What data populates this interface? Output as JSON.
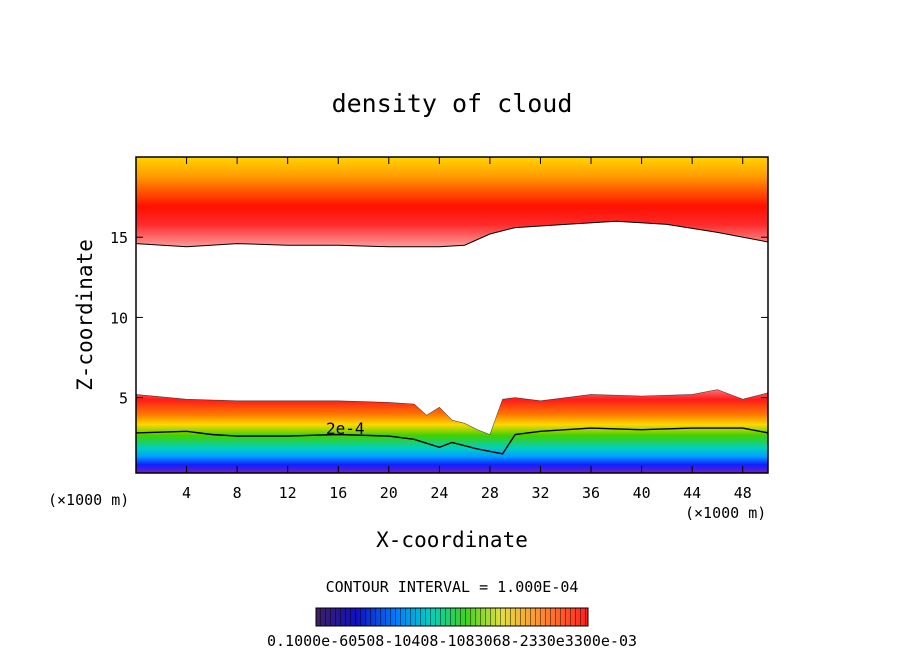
{
  "chart_data": {
    "type": "heatmap",
    "title": "density of cloud",
    "xlabel": "X-coordinate",
    "ylabel": "Z-coordinate",
    "x_unit_left": "(×1000 m)",
    "x_unit_right": "(×1000 m)",
    "xlim": [
      0,
      50
    ],
    "ylim": [
      0.3,
      20
    ],
    "x_ticks": [
      4,
      8,
      12,
      16,
      20,
      24,
      28,
      32,
      36,
      40,
      44,
      48
    ],
    "y_ticks": [
      5,
      10,
      15
    ],
    "contour_interval_text": "CONTOUR INTERVAL = 1.000E-04",
    "contour_label": "2e-4",
    "colorbar_labels_text": "0.1000e-60508-10408-1083068-2330e3300e-03",
    "colorbar_range": [
      0.0001,
      0.0003
    ],
    "upper_layer_bottom": [
      [
        0,
        14.6
      ],
      [
        4,
        14.4
      ],
      [
        8,
        14.6
      ],
      [
        12,
        14.5
      ],
      [
        16,
        14.5
      ],
      [
        20,
        14.4
      ],
      [
        24,
        14.4
      ],
      [
        26,
        14.5
      ],
      [
        28,
        15.2
      ],
      [
        30,
        15.6
      ],
      [
        34,
        15.8
      ],
      [
        38,
        16.0
      ],
      [
        42,
        15.8
      ],
      [
        46,
        15.3
      ],
      [
        50,
        14.7
      ]
    ],
    "lower_layer_top": [
      [
        0,
        5.2
      ],
      [
        4,
        4.9
      ],
      [
        8,
        4.8
      ],
      [
        12,
        4.8
      ],
      [
        16,
        4.8
      ],
      [
        20,
        4.7
      ],
      [
        22,
        4.6
      ],
      [
        23,
        3.9
      ],
      [
        24,
        4.4
      ],
      [
        25,
        3.6
      ],
      [
        26,
        3.4
      ],
      [
        27,
        3.0
      ],
      [
        28,
        2.7
      ],
      [
        29,
        4.9
      ],
      [
        30,
        5.0
      ],
      [
        32,
        4.8
      ],
      [
        36,
        5.2
      ],
      [
        40,
        5.1
      ],
      [
        44,
        5.2
      ],
      [
        46,
        5.5
      ],
      [
        48,
        4.9
      ],
      [
        50,
        5.3
      ]
    ],
    "contour_2e4": [
      [
        0,
        2.8
      ],
      [
        4,
        2.9
      ],
      [
        6,
        2.7
      ],
      [
        8,
        2.6
      ],
      [
        12,
        2.6
      ],
      [
        16,
        2.7
      ],
      [
        20,
        2.6
      ],
      [
        22,
        2.4
      ],
      [
        24,
        1.9
      ],
      [
        25,
        2.2
      ],
      [
        27,
        1.8
      ],
      [
        29,
        1.5
      ],
      [
        30,
        2.7
      ],
      [
        32,
        2.9
      ],
      [
        36,
        3.1
      ],
      [
        40,
        3.0
      ],
      [
        44,
        3.1
      ],
      [
        48,
        3.1
      ],
      [
        50,
        2.8
      ]
    ],
    "colors": {
      "yellow": "#ffd600",
      "orange": "#ff9000",
      "red": "#ff0000",
      "pink": "#ff8a8a",
      "green": "#30d000",
      "cyan": "#00d0f0",
      "blue": "#1030ff",
      "purple": "#7020c0"
    }
  }
}
